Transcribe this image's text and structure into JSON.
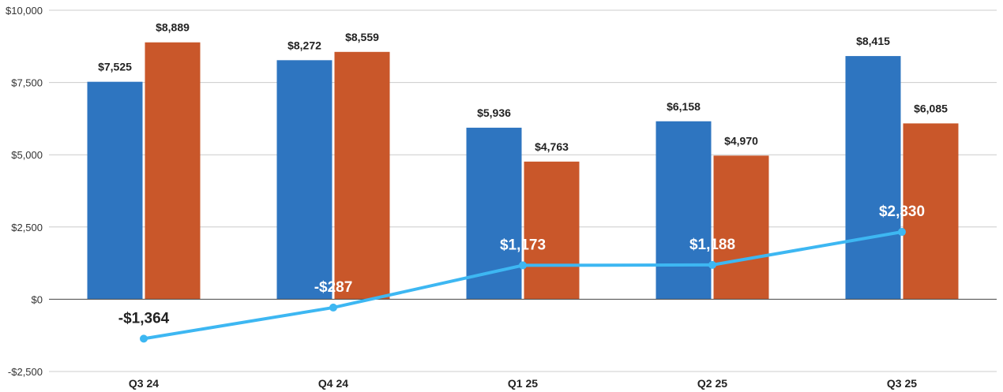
{
  "chart_data": {
    "type": "bar",
    "title": "",
    "xlabel": "",
    "ylabel": "",
    "ylim": [
      -2500,
      10000
    ],
    "yticks": [
      -2500,
      0,
      2500,
      5000,
      7500,
      10000
    ],
    "ytick_labels": [
      "-$2,500",
      "$0",
      "$2,500",
      "$5,000",
      "$7,500",
      "$10,000"
    ],
    "categories": [
      "Q3 24",
      "Q4 24",
      "Q1 25",
      "Q2 25",
      "Q3 25"
    ],
    "grid": true,
    "legend": "none",
    "series": [
      {
        "name": "Series 1",
        "type": "bar",
        "color": "#2E75C0",
        "values": [
          7525,
          8272,
          5936,
          6158,
          8415
        ],
        "labels": [
          "$7,525",
          "$8,272",
          "$5,936",
          "$6,158",
          "$8,415"
        ]
      },
      {
        "name": "Series 2",
        "type": "bar",
        "color": "#C9572A",
        "values": [
          8889,
          8559,
          4763,
          4970,
          6085
        ],
        "labels": [
          "$8,889",
          "$8,559",
          "$4,763",
          "$4,970",
          "$6,085"
        ]
      },
      {
        "name": "Series 3",
        "type": "line",
        "color": "#3DB7F2",
        "values": [
          -1364,
          -287,
          1173,
          1188,
          2330
        ],
        "labels": [
          "-$1,364",
          "-$287",
          "$1,173",
          "$1,188",
          "$2,330"
        ],
        "label_colors": [
          "#222222",
          "#ffffff",
          "#ffffff",
          "#ffffff",
          "#ffffff"
        ]
      }
    ]
  }
}
